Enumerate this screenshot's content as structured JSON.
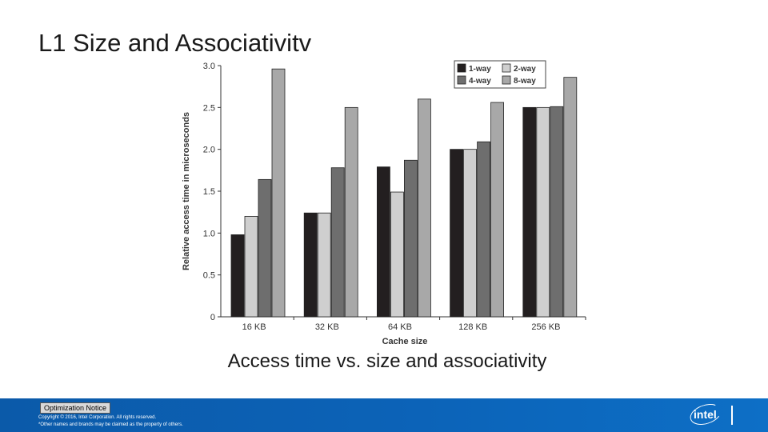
{
  "slide": {
    "title": "L1 Size and Associativitv",
    "caption": "Access time vs. size and associativity"
  },
  "footer": {
    "notice": "Optimization Notice",
    "copyright_line1": "Copyright © 2016, Intel Corporation. All rights reserved.",
    "copyright_line2": "*Other names and brands may be claimed as the property of others.",
    "logo_text": "intel",
    "logo_icon": "intel-logo-icon"
  },
  "chart_data": {
    "type": "bar",
    "title": "",
    "xlabel": "Cache size",
    "ylabel": "Relative access time in microseconds",
    "categories": [
      "16 KB",
      "32 KB",
      "64 KB",
      "128 KB",
      "256 KB"
    ],
    "yticks": [
      "0",
      "0.5",
      "1.0",
      "1.5",
      "2.0",
      "2.5",
      "3.0"
    ],
    "ylim": [
      0,
      3.0
    ],
    "legend_position": "top-right",
    "series": [
      {
        "name": "1-way",
        "color": "#231f20",
        "values": [
          0.98,
          1.24,
          1.79,
          2.0,
          2.5
        ]
      },
      {
        "name": "2-way",
        "color": "#cfcfcf",
        "values": [
          1.2,
          1.24,
          1.49,
          2.0,
          2.5
        ]
      },
      {
        "name": "4-way",
        "color": "#6e6e6e",
        "values": [
          1.64,
          1.78,
          1.87,
          2.09,
          2.51
        ]
      },
      {
        "name": "8-way",
        "color": "#a8a8a8",
        "values": [
          2.96,
          2.5,
          2.6,
          2.56,
          2.86
        ]
      }
    ]
  }
}
